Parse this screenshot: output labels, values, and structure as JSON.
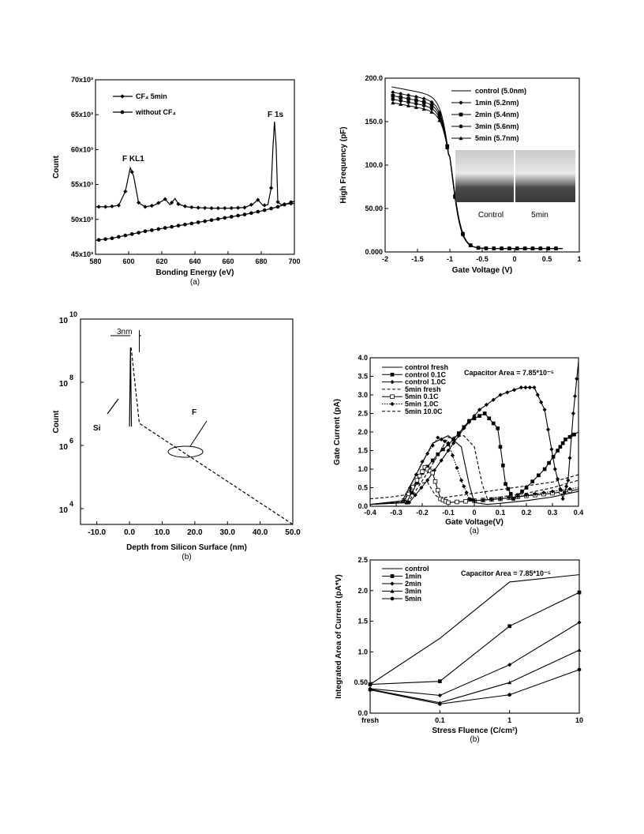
{
  "chart_data": [
    {
      "id": "xps",
      "type": "line",
      "caption": "(a)",
      "xlabel": "Bonding Energy (eV)",
      "ylabel": "Count",
      "xlim": [
        580,
        700
      ],
      "ylim": [
        45,
        70
      ],
      "x_ticks": [
        "580",
        "600",
        "620",
        "640",
        "660",
        "680",
        "700"
      ],
      "y_ticks": [
        "45x10³",
        "50x10³",
        "55x10³",
        "60x10³",
        "65x10³",
        "70x10³"
      ],
      "legend": [
        "CF₄ 5min",
        "without CF₄"
      ],
      "annotations": [
        "F KL1",
        "F 1s"
      ],
      "series": [
        {
          "name": "CF₄ 5min",
          "marker": "diamond",
          "x": [
            580,
            588,
            594,
            598,
            601,
            603,
            606,
            610,
            615,
            620,
            622,
            625,
            628,
            630,
            635,
            640,
            650,
            660,
            670,
            675,
            678,
            681,
            684,
            686,
            687,
            688,
            689,
            690,
            692,
            695,
            700
          ],
          "y": [
            51.8,
            51.8,
            52.0,
            54.0,
            57.4,
            56.2,
            52.4,
            51.8,
            52.0,
            52.6,
            52.9,
            52.1,
            53.0,
            52.2,
            51.8,
            51.7,
            51.6,
            51.6,
            51.7,
            52.2,
            52.8,
            52.0,
            52.1,
            54.5,
            60.0,
            64.0,
            60.5,
            52.5,
            52.1,
            52.2,
            52.3
          ]
        },
        {
          "name": "without CF₄",
          "marker": "circle",
          "x": [
            580,
            590,
            600,
            610,
            620,
            630,
            640,
            650,
            660,
            670,
            680,
            690,
            700
          ],
          "y": [
            47.0,
            47.3,
            47.8,
            48.3,
            48.7,
            49.1,
            49.5,
            49.9,
            50.3,
            50.7,
            51.2,
            51.8,
            52.6
          ]
        }
      ]
    },
    {
      "id": "cv",
      "type": "line",
      "xlabel": "Gate Voltage (V)",
      "ylabel": "High Frequency (pF)",
      "xlim": [
        -2,
        1
      ],
      "ylim": [
        0,
        200
      ],
      "x_ticks": [
        "-2",
        "-1.5",
        "-1",
        "-0.5",
        "0",
        "0.5",
        "1"
      ],
      "y_ticks": [
        "0.000",
        "50.00",
        "100.0",
        "150.0",
        "200.0"
      ],
      "legend": [
        "control (5.0nm)",
        "1min (5.2nm)",
        "2min (5.4nm)",
        "3min (5.6nm)",
        "5min (5.7nm)"
      ],
      "inset_labels": [
        "Control",
        "5min"
      ],
      "series": [
        {
          "name": "control (5.0nm)",
          "marker": "none",
          "plateau": 190
        },
        {
          "name": "1min (5.2nm)",
          "marker": "diamond",
          "plateau": 184
        },
        {
          "name": "2min (5.4nm)",
          "marker": "square",
          "plateau": 180
        },
        {
          "name": "3min (5.6nm)",
          "marker": "circle",
          "plateau": 176
        },
        {
          "name": "5min (5.7nm)",
          "marker": "triangle",
          "plateau": 172
        }
      ]
    },
    {
      "id": "sims",
      "type": "line",
      "caption": "(b)",
      "xlabel": "Depth from Silicon Surface (nm)",
      "ylabel": "Count",
      "xlim": [
        -15,
        50
      ],
      "log_y": true,
      "ylim_exp": [
        3.5,
        10
      ],
      "x_ticks": [
        "-10.0",
        "0.0",
        "10.0",
        "20.0",
        "30.0",
        "40.0",
        "50.0"
      ],
      "y_ticks": [
        "10",
        "10",
        "10",
        "10"
      ],
      "y_tick_exponents": [
        "10",
        "8",
        "6",
        "4"
      ],
      "annotations": [
        "3nm",
        "Si",
        "F"
      ],
      "series": [
        {
          "name": "Si",
          "style": "solid",
          "x": [
            0,
            0.3,
            0.6
          ],
          "y_exp": [
            6.6,
            9.1,
            6.6
          ]
        },
        {
          "name": "F",
          "style": "dashed",
          "x": [
            0.5,
            3,
            50
          ],
          "y_exp": [
            9.1,
            6.7,
            3.5
          ]
        }
      ]
    },
    {
      "id": "ig",
      "type": "line",
      "caption": "(a)",
      "xlabel": "Gate Voltage(V)",
      "ylabel": "Gate Current (pA)",
      "xlim": [
        -0.4,
        0.4
      ],
      "ylim": [
        0,
        4.0
      ],
      "x_ticks": [
        "-0.4",
        "-0.3",
        "-0.2",
        "-0.1",
        "0",
        "0.1",
        "0.2",
        "0.3",
        "0.4"
      ],
      "y_ticks": [
        "0.0",
        "0.5",
        "1.0",
        "1.5",
        "2.0",
        "2.5",
        "3.0",
        "3.5",
        "4.0"
      ],
      "annotation": "Capacitor Area = 7.85*10⁻⁵",
      "legend": [
        "control fresh",
        "control 0.1C",
        "control 1.0C",
        "5min fresh",
        "5min 0.1C",
        "5min 1.0C",
        "5min 10.0C"
      ],
      "series": [
        {
          "name": "control fresh",
          "style": "solid",
          "marker": "none",
          "x": [
            -0.4,
            -0.28,
            -0.22,
            -0.16,
            -0.1,
            -0.05,
            -0.02,
            0.0,
            0.05,
            0.1,
            0.2,
            0.3,
            0.4
          ],
          "y": [
            0.05,
            0.1,
            0.9,
            1.7,
            1.9,
            1.6,
            0.6,
            0.1,
            0.05,
            0.08,
            0.15,
            0.25,
            0.4
          ]
        },
        {
          "name": "control 0.1C",
          "style": "solid",
          "marker": "square",
          "x": [
            -0.4,
            -0.26,
            -0.2,
            -0.14,
            -0.08,
            -0.02,
            0.04,
            0.09,
            0.12,
            0.15,
            0.2,
            0.27,
            0.32,
            0.35,
            0.4
          ],
          "y": [
            0.05,
            0.1,
            0.9,
            1.4,
            1.8,
            2.3,
            2.5,
            2.1,
            0.6,
            0.2,
            0.5,
            1.0,
            1.5,
            1.8,
            2.0
          ]
        },
        {
          "name": "control 1.0C",
          "style": "solid",
          "marker": "diamond",
          "x": [
            -0.4,
            -0.25,
            -0.18,
            -0.1,
            -0.04,
            0.02,
            0.1,
            0.18,
            0.23,
            0.27,
            0.31,
            0.34,
            0.36,
            0.38,
            0.4
          ],
          "y": [
            0.05,
            0.1,
            0.7,
            1.5,
            2.1,
            2.6,
            3.0,
            3.2,
            3.2,
            2.6,
            1.0,
            0.2,
            0.7,
            2.5,
            3.9
          ]
        },
        {
          "name": "5min fresh",
          "style": "dashed",
          "marker": "none",
          "x": [
            -0.4,
            -0.32,
            -0.27,
            -0.22,
            -0.18,
            -0.15,
            -0.13,
            -0.1,
            0.0,
            0.1,
            0.2,
            0.3,
            0.4
          ],
          "y": [
            0.2,
            0.25,
            0.3,
            0.6,
            0.65,
            0.3,
            0.2,
            0.25,
            0.35,
            0.45,
            0.55,
            0.65,
            0.85
          ]
        },
        {
          "name": "5min 0.1C",
          "style": "solid",
          "marker": "square-open",
          "x": [
            -0.4,
            -0.27,
            -0.22,
            -0.19,
            -0.16,
            -0.13,
            -0.1,
            0.0,
            0.1,
            0.2,
            0.3,
            0.4
          ],
          "y": [
            0.05,
            0.15,
            0.7,
            1.05,
            0.9,
            0.2,
            0.1,
            0.15,
            0.2,
            0.28,
            0.35,
            0.45
          ]
        },
        {
          "name": "5min 1.0C",
          "style": "dotted",
          "marker": "diamond",
          "x": [
            -0.4,
            -0.27,
            -0.2,
            -0.14,
            -0.1,
            -0.05,
            -0.02,
            0.0,
            0.1,
            0.2,
            0.3,
            0.4
          ],
          "y": [
            0.05,
            0.15,
            1.2,
            1.85,
            1.7,
            0.7,
            0.2,
            0.15,
            0.2,
            0.3,
            0.4,
            0.5
          ]
        },
        {
          "name": "5min 10.0C",
          "style": "dashed",
          "marker": "none",
          "x": [
            -0.4,
            -0.25,
            -0.18,
            -0.1,
            -0.04,
            0.0,
            0.03,
            0.05,
            0.1,
            0.2,
            0.3,
            0.4
          ],
          "y": [
            0.05,
            0.15,
            0.9,
            1.85,
            1.9,
            1.6,
            0.6,
            0.2,
            0.25,
            0.35,
            0.5,
            0.7
          ]
        }
      ]
    },
    {
      "id": "area",
      "type": "line",
      "caption": "(b)",
      "xlabel": "Stress Fluence (C/cm²)",
      "ylabel": "Integrated Area of Current (pA*V)",
      "categories": [
        "fresh",
        "0.1",
        "1",
        "10"
      ],
      "ylim": [
        0,
        2.5
      ],
      "y_ticks": [
        "0.0",
        "0.50",
        "1.0",
        "1.5",
        "2.0",
        "2.5"
      ],
      "annotation": "Capacitor Area = 7.85*10⁻⁵",
      "legend": [
        "control",
        "1min",
        "2min",
        "3min",
        "5min"
      ],
      "series": [
        {
          "name": "control",
          "marker": "none",
          "values": [
            0.47,
            1.22,
            2.14,
            2.26
          ]
        },
        {
          "name": "1min",
          "marker": "square",
          "values": [
            0.47,
            0.52,
            1.42,
            1.97
          ]
        },
        {
          "name": "2min",
          "marker": "diamond",
          "values": [
            0.4,
            0.29,
            0.79,
            1.48
          ]
        },
        {
          "name": "3min",
          "marker": "triangle",
          "values": [
            0.39,
            0.17,
            0.5,
            1.03
          ]
        },
        {
          "name": "5min",
          "marker": "circle",
          "values": [
            0.38,
            0.15,
            0.3,
            0.71
          ]
        }
      ]
    }
  ],
  "page": {
    "caption_top": "(a)",
    "caption_left": "(b)"
  }
}
